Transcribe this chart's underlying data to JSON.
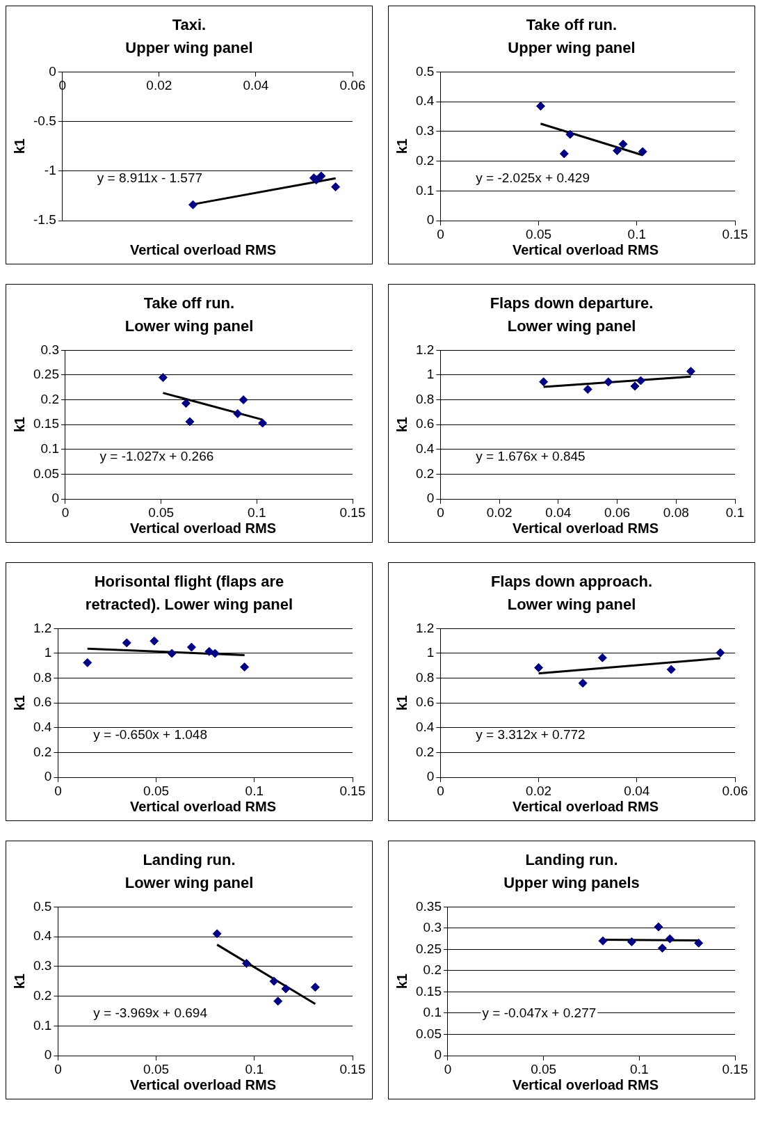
{
  "chart_data": [
    {
      "type": "scatter",
      "title": "Taxi.\nUpper wing panel",
      "xlabel": "Vertical overload RMS",
      "ylabel": "k1",
      "xlim": [
        0,
        0.06
      ],
      "xticks": [
        0,
        0.02,
        0.04,
        0.06
      ],
      "ylim": [
        -1.5,
        0
      ],
      "yticks": [
        -1.5,
        -1,
        -0.5,
        0
      ],
      "grid": "y",
      "legend": false,
      "series": [
        {
          "type": "scatter",
          "marker": "diamond",
          "color": "#000080",
          "x": [
            0.027,
            0.052,
            0.0525,
            0.0535,
            0.0565
          ],
          "values": [
            -1.34,
            -1.07,
            -1.09,
            -1.05,
            -1.16
          ]
        },
        {
          "type": "line",
          "color": "#000000",
          "x": [
            0.027,
            0.0565
          ],
          "values": [
            -1.336,
            -1.074
          ]
        }
      ],
      "annotations": [
        "y = 8.911x - 1.577"
      ]
    },
    {
      "type": "scatter",
      "title": "Take off run.\nUpper wing panel",
      "xlabel": "Vertical overload RMS",
      "ylabel": "k1",
      "xlim": [
        0,
        0.15
      ],
      "xticks": [
        0,
        0.05,
        0.1,
        0.15
      ],
      "ylim": [
        0,
        0.5
      ],
      "yticks": [
        0,
        0.1,
        0.2,
        0.3,
        0.4,
        0.5
      ],
      "grid": "y",
      "legend": false,
      "series": [
        {
          "type": "scatter",
          "marker": "diamond",
          "color": "#000080",
          "x": [
            0.051,
            0.063,
            0.066,
            0.09,
            0.093,
            0.103
          ],
          "values": [
            0.385,
            0.225,
            0.29,
            0.235,
            0.257,
            0.232
          ]
        },
        {
          "type": "line",
          "color": "#000000",
          "x": [
            0.051,
            0.103
          ],
          "values": [
            0.326,
            0.22
          ]
        }
      ],
      "annotations": [
        "y = -2.025x + 0.429"
      ]
    },
    {
      "type": "scatter",
      "title": "Take off run.\nLower wing panel",
      "xlabel": "Vertical overload RMS",
      "ylabel": "k1",
      "xlim": [
        0,
        0.15
      ],
      "xticks": [
        0,
        0.05,
        0.1,
        0.15
      ],
      "ylim": [
        0,
        0.3
      ],
      "yticks": [
        0,
        0.05,
        0.1,
        0.15,
        0.2,
        0.25,
        0.3
      ],
      "grid": "y",
      "legend": false,
      "series": [
        {
          "type": "scatter",
          "marker": "diamond",
          "color": "#000080",
          "x": [
            0.051,
            0.063,
            0.065,
            0.09,
            0.093,
            0.103
          ],
          "values": [
            0.245,
            0.193,
            0.156,
            0.172,
            0.2,
            0.153
          ]
        },
        {
          "type": "line",
          "color": "#000000",
          "x": [
            0.051,
            0.103
          ],
          "values": [
            0.214,
            0.16
          ]
        }
      ],
      "annotations": [
        "y = -1.027x + 0.266"
      ]
    },
    {
      "type": "scatter",
      "title": "Flaps down departure.\nLower wing panel",
      "xlabel": "Vertical overload RMS",
      "ylabel": "k1",
      "xlim": [
        0,
        0.1
      ],
      "xticks": [
        0,
        0.02,
        0.04,
        0.06,
        0.08,
        0.1
      ],
      "ylim": [
        0,
        1.2
      ],
      "yticks": [
        0,
        0.2,
        0.4,
        0.6,
        0.8,
        1,
        1.2
      ],
      "grid": "y",
      "legend": false,
      "series": [
        {
          "type": "scatter",
          "marker": "diamond",
          "color": "#000080",
          "x": [
            0.035,
            0.05,
            0.057,
            0.066,
            0.068,
            0.085
          ],
          "values": [
            0.945,
            0.885,
            0.945,
            0.91,
            0.955,
            1.03
          ]
        },
        {
          "type": "line",
          "color": "#000000",
          "x": [
            0.035,
            0.085
          ],
          "values": [
            0.904,
            0.987
          ]
        }
      ],
      "annotations": [
        "y = 1.676x + 0.845"
      ]
    },
    {
      "type": "scatter",
      "title": "Horisontal flight (flaps are\nretracted). Lower wing panel",
      "xlabel": "Vertical overload RMS",
      "ylabel": "k1",
      "xlim": [
        0,
        0.15
      ],
      "xticks": [
        0,
        0.05,
        0.1,
        0.15
      ],
      "ylim": [
        0,
        1.2
      ],
      "yticks": [
        0,
        0.2,
        0.4,
        0.6,
        0.8,
        1,
        1.2
      ],
      "grid": "y",
      "legend": false,
      "series": [
        {
          "type": "scatter",
          "marker": "diamond",
          "color": "#000080",
          "x": [
            0.015,
            0.035,
            0.049,
            0.058,
            0.068,
            0.077,
            0.08,
            0.095
          ],
          "values": [
            0.925,
            1.085,
            1.1,
            1.0,
            1.05,
            1.015,
            1.0,
            0.89
          ]
        },
        {
          "type": "line",
          "color": "#000000",
          "x": [
            0.015,
            0.095
          ],
          "values": [
            1.038,
            0.986
          ]
        }
      ],
      "annotations": [
        "y = -0.650x + 1.048"
      ]
    },
    {
      "type": "scatter",
      "title": "Flaps down approach.\nLower wing panel",
      "xlabel": "Vertical overload RMS",
      "ylabel": "k1",
      "xlim": [
        0,
        0.06
      ],
      "xticks": [
        0,
        0.02,
        0.04,
        0.06
      ],
      "ylim": [
        0,
        1.2
      ],
      "yticks": [
        0,
        0.2,
        0.4,
        0.6,
        0.8,
        1,
        1.2
      ],
      "grid": "y",
      "legend": false,
      "series": [
        {
          "type": "scatter",
          "marker": "diamond",
          "color": "#000080",
          "x": [
            0.02,
            0.029,
            0.033,
            0.047,
            0.057
          ],
          "values": [
            0.885,
            0.76,
            0.965,
            0.87,
            1.005
          ]
        },
        {
          "type": "line",
          "color": "#000000",
          "x": [
            0.02,
            0.057
          ],
          "values": [
            0.838,
            0.961
          ]
        }
      ],
      "annotations": [
        "y = 3.312x + 0.772"
      ]
    },
    {
      "type": "scatter",
      "title": "Landing run.\nLower wing panel",
      "xlabel": "Vertical overload RMS",
      "ylabel": "k1",
      "xlim": [
        0,
        0.15
      ],
      "xticks": [
        0,
        0.05,
        0.1,
        0.15
      ],
      "ylim": [
        0,
        0.5
      ],
      "yticks": [
        0,
        0.1,
        0.2,
        0.3,
        0.4,
        0.5
      ],
      "grid": "y",
      "legend": false,
      "series": [
        {
          "type": "scatter",
          "marker": "diamond",
          "color": "#000080",
          "x": [
            0.081,
            0.096,
            0.11,
            0.112,
            0.116,
            0.131
          ],
          "values": [
            0.41,
            0.31,
            0.25,
            0.183,
            0.225,
            0.23
          ]
        },
        {
          "type": "line",
          "color": "#000000",
          "x": [
            0.081,
            0.131
          ],
          "values": [
            0.373,
            0.174
          ]
        }
      ],
      "annotations": [
        "y = -3.969x + 0.694"
      ]
    },
    {
      "type": "scatter",
      "title": "Landing run.\nUpper wing panels",
      "xlabel": "Vertical overload RMS",
      "ylabel": "k1",
      "xlim": [
        0,
        0.15
      ],
      "xticks": [
        0,
        0.05,
        0.1,
        0.15
      ],
      "ylim": [
        0,
        0.35
      ],
      "yticks": [
        0,
        0.05,
        0.1,
        0.15,
        0.2,
        0.25,
        0.3,
        0.35
      ],
      "grid": "y",
      "legend": false,
      "series": [
        {
          "type": "scatter",
          "marker": "diamond",
          "color": "#000080",
          "x": [
            0.081,
            0.096,
            0.11,
            0.112,
            0.116,
            0.131
          ],
          "values": [
            0.27,
            0.268,
            0.303,
            0.253,
            0.275,
            0.265
          ]
        },
        {
          "type": "line",
          "color": "#000000",
          "x": [
            0.081,
            0.131
          ],
          "values": [
            0.273,
            0.271
          ]
        }
      ],
      "annotations": [
        "y = -0.047x + 0.277"
      ]
    }
  ]
}
